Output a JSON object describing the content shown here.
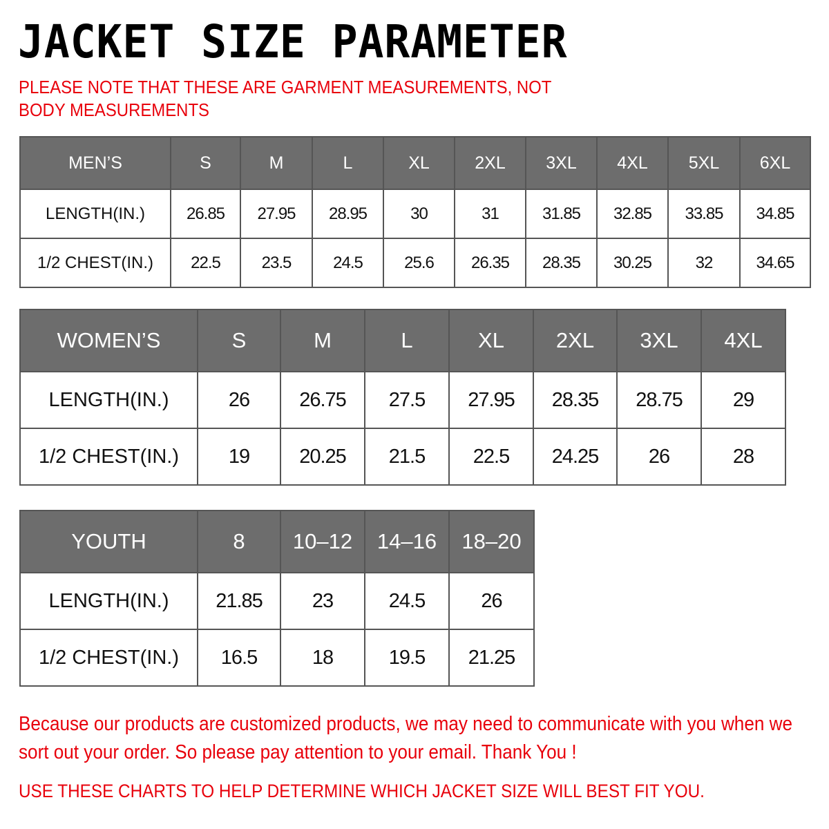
{
  "title": "JACKET  SIZE  PARAMETER",
  "note": "PLEASE NOTE THAT THESE ARE GARMENT MEASUREMENTS, NOT BODY MEASUREMENTS",
  "tables": {
    "men": {
      "header": [
        "MEN’S",
        "S",
        "M",
        "L",
        "XL",
        "2XL",
        "3XL",
        "4XL",
        "5XL",
        "6XL"
      ],
      "rows": [
        [
          "LENGTH(IN.)",
          "26.85",
          "27.95",
          "28.95",
          "30",
          "31",
          "31.85",
          "32.85",
          "33.85",
          "34.85"
        ],
        [
          "1/2 CHEST(IN.)",
          "22.5",
          "23.5",
          "24.5",
          "25.6",
          "26.35",
          "28.35",
          "30.25",
          "32",
          "34.65"
        ]
      ]
    },
    "women": {
      "header": [
        "WOMEN’S",
        "S",
        "M",
        "L",
        "XL",
        "2XL",
        "3XL",
        "4XL"
      ],
      "rows": [
        [
          "LENGTH(IN.)",
          "26",
          "26.75",
          "27.5",
          "27.95",
          "28.35",
          "28.75",
          "29"
        ],
        [
          "1/2 CHEST(IN.)",
          "19",
          "20.25",
          "21.5",
          "22.5",
          "24.25",
          "26",
          "28"
        ]
      ]
    },
    "youth": {
      "header": [
        "YOUTH",
        "8",
        "10–12",
        "14–16",
        "18–20"
      ],
      "rows": [
        [
          "LENGTH(IN.)",
          "21.85",
          "23",
          "24.5",
          "26"
        ],
        [
          "1/2 CHEST(IN.)",
          "16.5",
          "18",
          "19.5",
          "21.25"
        ]
      ]
    }
  },
  "footer": {
    "message": "Because our products are customized products, we may need to communicate with you when we sort out your order. So please pay attention to your email. Thank You !",
    "instruction": "USE THESE CHARTS TO HELP DETERMINE WHICH JACKET SIZE WILL BEST FIT YOU."
  },
  "colors": {
    "header_bg": "#6d6d6d",
    "accent_red": "#e8000b"
  }
}
